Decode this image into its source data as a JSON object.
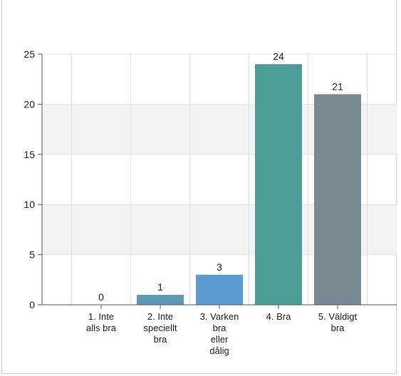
{
  "chart_data": {
    "type": "bar",
    "categories": [
      [
        "1. Inte",
        "alls bra"
      ],
      [
        "2. Inte",
        "speciellt",
        "bra"
      ],
      [
        "3. Varken",
        "bra",
        "eller",
        "dålig"
      ],
      [
        "4. Bra"
      ],
      [
        "5. Väldigt",
        "bra"
      ]
    ],
    "values": [
      0,
      1,
      3,
      24,
      21
    ],
    "colors": [
      "#5a9ab5",
      "#5a9ab5",
      "#5b9bd0",
      "#4a9e96",
      "#788a94"
    ],
    "title": "",
    "xlabel": "",
    "ylabel": "",
    "ylim": [
      0,
      25
    ],
    "yticks": [
      0,
      5,
      10,
      15,
      20,
      25
    ],
    "grid": true,
    "banding": true,
    "band_color": "#f2f2f2",
    "grid_color": "#e0e0e0",
    "legend": "none",
    "data_labels": true
  }
}
